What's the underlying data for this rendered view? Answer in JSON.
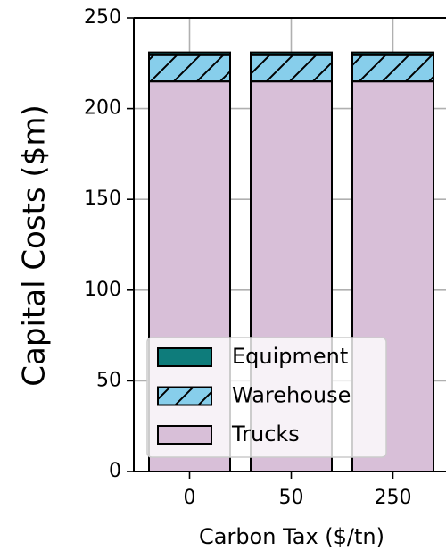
{
  "chart_data": {
    "type": "stacked_bar",
    "x_label": "Carbon Tax ($/tn)",
    "y_label": "Capital Costs ($m)",
    "categories": [
      "0",
      "50",
      "250"
    ],
    "series": [
      {
        "name": "Trucks",
        "color": "#d8bfd8",
        "values": [
          215,
          215,
          215
        ]
      },
      {
        "name": "Warehouse",
        "color": "#87ceeb",
        "hatch": "/",
        "values": [
          14.5,
          14.5,
          14.5
        ]
      },
      {
        "name": "Equipment",
        "color": "#0e7c7b",
        "values": [
          1.5,
          1.5,
          1.5
        ]
      }
    ],
    "ylim": [
      0,
      250
    ],
    "yticks": [
      0,
      50,
      100,
      150,
      200,
      250
    ],
    "grid": true,
    "legend": "lower left"
  }
}
